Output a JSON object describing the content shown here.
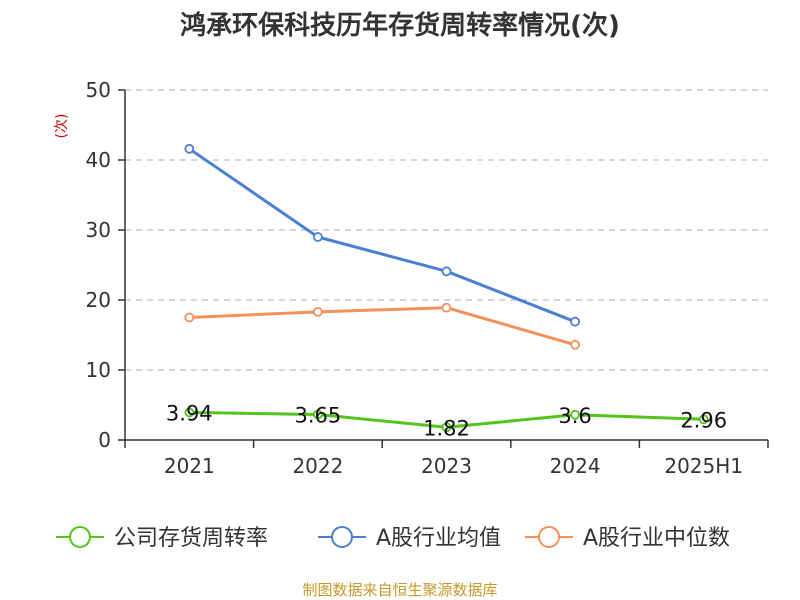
{
  "chart_data": {
    "type": "line",
    "title": "鸿承环保科技历年存货周转率情况(次)",
    "ylabel": "(次)",
    "categories": [
      "2021",
      "2022",
      "2023",
      "2024",
      "2025H1"
    ],
    "ylim": [
      0,
      50
    ],
    "yticks": [
      0,
      10,
      20,
      30,
      40,
      50
    ],
    "grid": true,
    "legend_position": "bottom",
    "series": [
      {
        "name": "公司存货周转率",
        "color": "#52c41a",
        "values": [
          3.94,
          3.65,
          1.82,
          3.6,
          2.96
        ],
        "labels": [
          "3.94",
          "3.65",
          "1.82",
          "3.6",
          "2.96"
        ]
      },
      {
        "name": "A股行业均值",
        "color": "#4a7fd4",
        "values": [
          41.6,
          29.0,
          24.1,
          16.9,
          null
        ]
      },
      {
        "name": "A股行业中位数",
        "color": "#f4905a",
        "values": [
          17.5,
          18.3,
          18.9,
          13.6,
          null
        ]
      }
    ],
    "source": "制图数据来自恒生聚源数据库"
  }
}
